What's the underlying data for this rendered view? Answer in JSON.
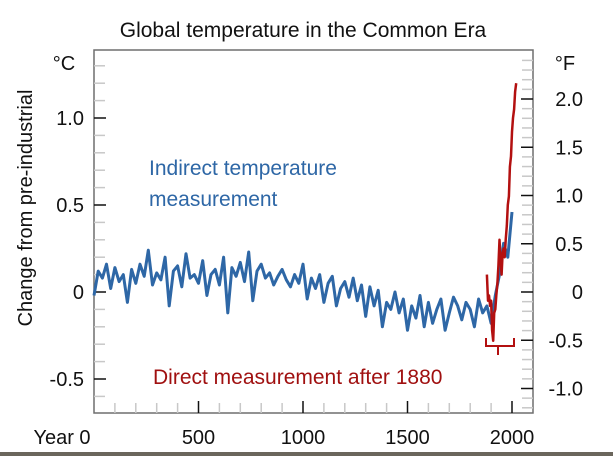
{
  "chart_data": {
    "type": "line",
    "title": "Global temperature in the Common Era",
    "ylabel": "Change from pre-industrial",
    "xlabel": "Year",
    "left_unit": "°C",
    "right_unit": "°F",
    "xlim": [
      0,
      2020
    ],
    "ylim": [
      -0.7,
      1.4
    ],
    "x_ticks": [
      {
        "value": 0,
        "label": "Year 0"
      },
      {
        "value": 500,
        "label": "500"
      },
      {
        "value": 1000,
        "label": "1000"
      },
      {
        "value": 1500,
        "label": "1500"
      },
      {
        "value": 2000,
        "label": "2000"
      }
    ],
    "y_ticks_celsius": [
      {
        "value": 1.0,
        "label": "1.0"
      },
      {
        "value": 0.5,
        "label": "0.5"
      },
      {
        "value": 0,
        "label": "0"
      },
      {
        "value": -0.5,
        "label": "-0.5"
      }
    ],
    "y_ticks_fahrenheit": [
      {
        "value": 2.0,
        "label": "2.0"
      },
      {
        "value": 1.5,
        "label": "1.5"
      },
      {
        "value": 1.0,
        "label": "1.0"
      },
      {
        "value": 0.5,
        "label": "0.5"
      },
      {
        "value": 0,
        "label": "0"
      },
      {
        "value": -0.5,
        "label": "-0.5"
      },
      {
        "value": -1.0,
        "label": "-1.0"
      }
    ],
    "grid": false,
    "annotations": [
      {
        "text_lines": [
          "Indirect temperature",
          "measurement"
        ],
        "series": "indirect"
      },
      {
        "text": "Direct measurement after 1880",
        "series": "direct"
      }
    ],
    "series": [
      {
        "name": "Indirect temperature measurement",
        "color": "#2e67a6",
        "x": [
          0,
          20,
          40,
          60,
          80,
          100,
          120,
          140,
          160,
          180,
          200,
          220,
          240,
          260,
          280,
          300,
          320,
          340,
          360,
          380,
          400,
          420,
          440,
          460,
          480,
          500,
          520,
          540,
          560,
          580,
          600,
          620,
          640,
          660,
          680,
          700,
          720,
          740,
          760,
          780,
          800,
          820,
          840,
          860,
          880,
          900,
          920,
          940,
          960,
          980,
          1000,
          1020,
          1040,
          1060,
          1080,
          1100,
          1120,
          1140,
          1160,
          1180,
          1200,
          1220,
          1240,
          1260,
          1280,
          1300,
          1320,
          1340,
          1360,
          1380,
          1400,
          1420,
          1440,
          1460,
          1480,
          1500,
          1520,
          1540,
          1560,
          1580,
          1600,
          1620,
          1640,
          1660,
          1680,
          1700,
          1720,
          1740,
          1760,
          1780,
          1800,
          1820,
          1840,
          1860,
          1880,
          1900,
          1920,
          1940,
          1960,
          1980,
          2000
        ],
        "values": [
          -0.02,
          0.12,
          0.08,
          0.16,
          0.02,
          0.14,
          0.06,
          0.1,
          -0.06,
          0.13,
          0.05,
          0.16,
          0.09,
          0.24,
          0.04,
          0.11,
          0.07,
          0.2,
          -0.08,
          0.12,
          0.15,
          0.03,
          0.22,
          0.08,
          0.1,
          0.05,
          0.18,
          -0.02,
          0.1,
          0.13,
          0.04,
          0.2,
          -0.12,
          0.14,
          0.09,
          0.17,
          0.06,
          0.23,
          -0.05,
          0.12,
          0.16,
          0.08,
          0.11,
          0.04,
          0.09,
          0.13,
          0.07,
          0.03,
          0.1,
          0.05,
          0.16,
          -0.04,
          0.08,
          0.02,
          0.1,
          -0.06,
          0.05,
          0.09,
          -0.08,
          0.02,
          0.06,
          -0.03,
          0.08,
          -0.05,
          0.04,
          -0.14,
          0.03,
          -0.08,
          0.01,
          -0.2,
          -0.06,
          -0.1,
          0.0,
          -0.12,
          -0.04,
          -0.22,
          -0.08,
          -0.15,
          -0.02,
          -0.2,
          -0.06,
          -0.18,
          -0.1,
          -0.04,
          -0.22,
          -0.12,
          -0.03,
          -0.08,
          -0.16,
          -0.06,
          -0.1,
          -0.2,
          -0.04,
          -0.12,
          -0.08,
          -0.18,
          -0.02,
          0.1,
          0.28,
          0.2,
          0.46
        ]
      },
      {
        "name": "Direct measurement after 1880",
        "color": "#b31010",
        "x": [
          1880,
          1885,
          1890,
          1895,
          1900,
          1905,
          1910,
          1915,
          1920,
          1925,
          1930,
          1935,
          1940,
          1945,
          1950,
          1955,
          1960,
          1965,
          1970,
          1975,
          1980,
          1985,
          1990,
          1995,
          2000,
          2005,
          2010,
          2015,
          2020
        ],
        "values": [
          0.1,
          -0.05,
          -0.02,
          -0.08,
          -0.05,
          -0.22,
          -0.28,
          -0.12,
          -0.1,
          -0.02,
          0.05,
          0.15,
          0.3,
          0.2,
          0.1,
          0.22,
          0.25,
          0.2,
          0.3,
          0.38,
          0.5,
          0.55,
          0.72,
          0.78,
          0.92,
          1.0,
          1.05,
          1.15,
          1.2
        ]
      }
    ]
  }
}
